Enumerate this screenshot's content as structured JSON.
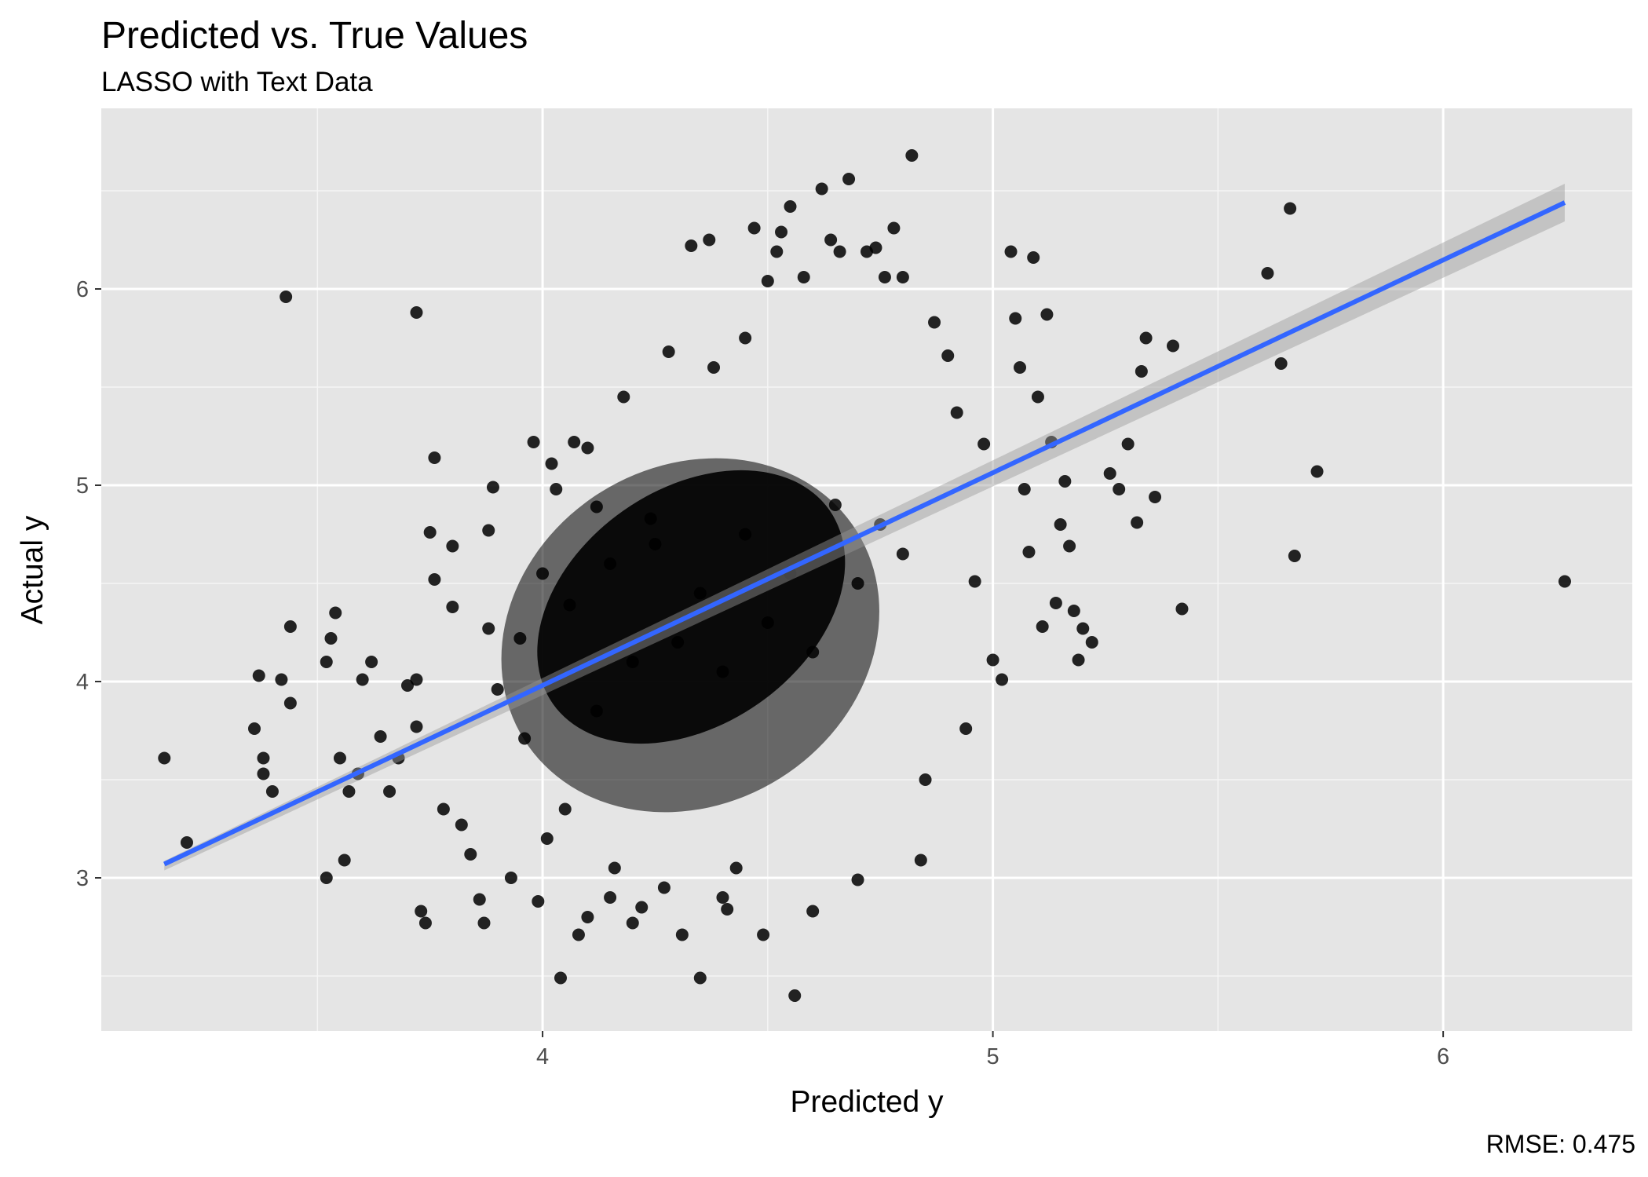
{
  "chart_data": {
    "type": "scatter",
    "title": "Predicted vs. True Values",
    "subtitle": "LASSO with Text Data",
    "xlabel": "Predicted y",
    "ylabel": "Actual y",
    "caption": "RMSE: 0.475",
    "xlim": [
      3.02,
      6.42
    ],
    "ylim": [
      2.22,
      6.92
    ],
    "x_major_ticks": [
      4,
      5,
      6
    ],
    "x_minor_ticks": [
      3.5,
      4.5,
      5.5
    ],
    "y_major_ticks": [
      3,
      4,
      5,
      6
    ],
    "y_minor_ticks": [
      2.5,
      3.5,
      4.5,
      5.5,
      6.5
    ],
    "grid": true,
    "panel_background": "#e5e5e5",
    "point_color": "#000000",
    "fit_line": {
      "method": "lm",
      "color": "#3366ff",
      "x": [
        3.16,
        6.27
      ],
      "y": [
        3.07,
        6.44
      ],
      "se_band": true
    },
    "dense_cloud_center": {
      "x": 4.33,
      "y": 4.38
    },
    "points": [
      [
        3.16,
        3.61
      ],
      [
        3.21,
        3.18
      ],
      [
        3.36,
        3.76
      ],
      [
        3.37,
        4.03
      ],
      [
        3.38,
        3.61
      ],
      [
        3.38,
        3.53
      ],
      [
        3.4,
        3.44
      ],
      [
        3.42,
        4.01
      ],
      [
        3.43,
        5.96
      ],
      [
        3.44,
        4.28
      ],
      [
        3.44,
        3.89
      ],
      [
        3.52,
        3.0
      ],
      [
        3.52,
        4.1
      ],
      [
        3.53,
        4.22
      ],
      [
        3.54,
        4.35
      ],
      [
        3.55,
        3.61
      ],
      [
        3.56,
        3.09
      ],
      [
        3.57,
        3.44
      ],
      [
        3.59,
        3.53
      ],
      [
        3.6,
        4.01
      ],
      [
        3.62,
        4.1
      ],
      [
        3.64,
        3.72
      ],
      [
        3.66,
        3.44
      ],
      [
        3.68,
        3.61
      ],
      [
        3.7,
        3.98
      ],
      [
        3.72,
        4.01
      ],
      [
        3.72,
        3.77
      ],
      [
        3.73,
        2.83
      ],
      [
        3.74,
        2.77
      ],
      [
        3.75,
        4.76
      ],
      [
        3.76,
        5.14
      ],
      [
        3.76,
        4.52
      ],
      [
        3.78,
        3.35
      ],
      [
        3.8,
        4.69
      ],
      [
        3.8,
        4.38
      ],
      [
        3.82,
        3.27
      ],
      [
        3.84,
        3.12
      ],
      [
        3.86,
        2.89
      ],
      [
        3.87,
        2.77
      ],
      [
        3.88,
        4.77
      ],
      [
        3.88,
        4.27
      ],
      [
        3.89,
        4.99
      ],
      [
        3.9,
        3.96
      ],
      [
        3.72,
        5.88
      ],
      [
        3.93,
        3.0
      ],
      [
        3.95,
        4.22
      ],
      [
        3.96,
        3.71
      ],
      [
        3.98,
        5.22
      ],
      [
        3.99,
        2.88
      ],
      [
        4.0,
        4.55
      ],
      [
        4.01,
        3.2
      ],
      [
        4.02,
        5.11
      ],
      [
        4.03,
        4.98
      ],
      [
        4.04,
        2.49
      ],
      [
        4.06,
        4.39
      ],
      [
        4.07,
        5.22
      ],
      [
        4.08,
        2.71
      ],
      [
        4.1,
        2.8
      ],
      [
        4.1,
        5.19
      ],
      [
        4.12,
        4.89
      ],
      [
        4.15,
        2.9
      ],
      [
        4.16,
        3.05
      ],
      [
        4.18,
        5.45
      ],
      [
        4.2,
        2.77
      ],
      [
        4.22,
        2.85
      ],
      [
        4.24,
        4.83
      ],
      [
        4.27,
        2.95
      ],
      [
        4.28,
        5.68
      ],
      [
        4.31,
        2.71
      ],
      [
        4.33,
        6.22
      ],
      [
        4.35,
        2.49
      ],
      [
        4.37,
        6.25
      ],
      [
        4.38,
        5.6
      ],
      [
        4.4,
        2.9
      ],
      [
        4.41,
        2.84
      ],
      [
        4.43,
        3.05
      ],
      [
        4.45,
        5.75
      ],
      [
        4.47,
        6.31
      ],
      [
        4.49,
        2.71
      ],
      [
        4.5,
        6.04
      ],
      [
        4.52,
        6.19
      ],
      [
        4.53,
        6.29
      ],
      [
        4.55,
        6.42
      ],
      [
        4.56,
        2.4
      ],
      [
        4.58,
        6.06
      ],
      [
        4.6,
        2.83
      ],
      [
        4.62,
        6.51
      ],
      [
        4.64,
        6.25
      ],
      [
        4.66,
        6.19
      ],
      [
        4.68,
        6.56
      ],
      [
        4.7,
        2.99
      ],
      [
        4.72,
        6.19
      ],
      [
        4.74,
        6.21
      ],
      [
        4.76,
        6.06
      ],
      [
        4.78,
        6.31
      ],
      [
        4.8,
        6.06
      ],
      [
        4.82,
        6.68
      ],
      [
        4.84,
        3.09
      ],
      [
        4.85,
        3.5
      ],
      [
        4.87,
        5.83
      ],
      [
        4.9,
        5.66
      ],
      [
        4.92,
        5.37
      ],
      [
        4.94,
        3.76
      ],
      [
        4.96,
        4.51
      ],
      [
        4.98,
        5.21
      ],
      [
        5.0,
        4.11
      ],
      [
        5.02,
        4.01
      ],
      [
        5.04,
        6.19
      ],
      [
        5.05,
        5.85
      ],
      [
        5.06,
        5.6
      ],
      [
        5.07,
        4.98
      ],
      [
        5.08,
        4.66
      ],
      [
        5.09,
        6.16
      ],
      [
        5.1,
        5.45
      ],
      [
        5.11,
        4.28
      ],
      [
        5.12,
        5.87
      ],
      [
        5.13,
        5.22
      ],
      [
        5.14,
        4.4
      ],
      [
        5.15,
        4.8
      ],
      [
        5.16,
        5.02
      ],
      [
        5.17,
        4.69
      ],
      [
        5.18,
        4.36
      ],
      [
        5.19,
        4.11
      ],
      [
        5.2,
        4.27
      ],
      [
        5.22,
        4.2
      ],
      [
        5.26,
        5.06
      ],
      [
        5.28,
        4.98
      ],
      [
        5.3,
        5.21
      ],
      [
        5.32,
        4.81
      ],
      [
        5.33,
        5.58
      ],
      [
        5.34,
        5.75
      ],
      [
        5.36,
        4.94
      ],
      [
        5.4,
        5.71
      ],
      [
        5.42,
        4.37
      ],
      [
        5.61,
        6.08
      ],
      [
        5.64,
        5.62
      ],
      [
        5.66,
        6.41
      ],
      [
        5.67,
        4.64
      ],
      [
        5.72,
        5.07
      ],
      [
        6.27,
        4.51
      ],
      [
        4.05,
        3.35
      ],
      [
        4.12,
        3.85
      ],
      [
        4.15,
        4.6
      ],
      [
        4.2,
        4.1
      ],
      [
        4.25,
        4.7
      ],
      [
        4.3,
        4.2
      ],
      [
        4.35,
        4.45
      ],
      [
        4.4,
        4.05
      ],
      [
        4.45,
        4.75
      ],
      [
        4.5,
        4.3
      ],
      [
        4.55,
        4.55
      ],
      [
        4.6,
        4.15
      ],
      [
        4.65,
        4.9
      ],
      [
        4.7,
        4.5
      ],
      [
        4.75,
        4.8
      ],
      [
        4.8,
        4.65
      ]
    ]
  }
}
